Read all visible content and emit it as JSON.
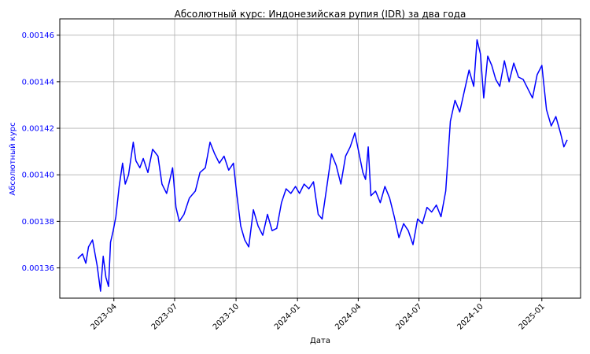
{
  "chart_data": {
    "type": "line",
    "title": "Абсолютный курс: Индонезийская рупия (IDR) за два года",
    "xlabel": "Дата",
    "ylabel": "Абсолютный курс",
    "y_ticks": [
      0.00136,
      0.00138,
      0.0014,
      0.00142,
      0.00144,
      0.00146
    ],
    "y_tick_labels": [
      "0.00136",
      "0.00138",
      "0.00140",
      "0.00142",
      "0.00144",
      "0.00146"
    ],
    "ylim": [
      0.001347,
      0.001467
    ],
    "x_ticks": [
      "2023-04",
      "2023-07",
      "2023-10",
      "2024-01",
      "2024-04",
      "2024-07",
      "2024-10",
      "2025-01"
    ],
    "xlim": [
      "2023-01-10",
      "2025-02-28"
    ],
    "grid": true,
    "colors": {
      "line": "#0000ff",
      "ylabel": "#0000ff",
      "grid": "#b0b0b0"
    },
    "series": [
      {
        "x": [
          "2023-02-06",
          "2023-02-13",
          "2023-02-18",
          "2023-02-22",
          "2023-02-28",
          "2023-03-07",
          "2023-03-12",
          "2023-03-16",
          "2023-03-20",
          "2023-03-24",
          "2023-03-27",
          "2023-03-31",
          "2023-04-04",
          "2023-04-09",
          "2023-04-14",
          "2023-04-18",
          "2023-04-23",
          "2023-04-30",
          "2023-05-04",
          "2023-05-10",
          "2023-05-15",
          "2023-05-22",
          "2023-05-29",
          "2023-06-06",
          "2023-06-12",
          "2023-06-19",
          "2023-06-24",
          "2023-06-28",
          "2023-07-03",
          "2023-07-08",
          "2023-07-15",
          "2023-07-23",
          "2023-08-01",
          "2023-08-08",
          "2023-08-16",
          "2023-08-23",
          "2023-08-30",
          "2023-09-06",
          "2023-09-13",
          "2023-09-20",
          "2023-09-27",
          "2023-10-02",
          "2023-10-08",
          "2023-10-14",
          "2023-10-20",
          "2023-10-27",
          "2023-11-03",
          "2023-11-10",
          "2023-11-17",
          "2023-11-24",
          "2023-12-01",
          "2023-12-08",
          "2023-12-15",
          "2023-12-22",
          "2023-12-29",
          "2024-01-04",
          "2024-01-11",
          "2024-01-18",
          "2024-01-25",
          "2024-02-01",
          "2024-02-07",
          "2024-02-14",
          "2024-02-21",
          "2024-02-28",
          "2024-03-06",
          "2024-03-13",
          "2024-03-20",
          "2024-03-27",
          "2024-04-03",
          "2024-04-08",
          "2024-04-12",
          "2024-04-16",
          "2024-04-20",
          "2024-04-27",
          "2024-05-04",
          "2024-05-11",
          "2024-05-18",
          "2024-05-25",
          "2024-06-01",
          "2024-06-08",
          "2024-06-15",
          "2024-06-22",
          "2024-06-29",
          "2024-07-06",
          "2024-07-13",
          "2024-07-20",
          "2024-07-27",
          "2024-08-03",
          "2024-08-10",
          "2024-08-17",
          "2024-08-24",
          "2024-08-31",
          "2024-09-07",
          "2024-09-14",
          "2024-09-21",
          "2024-09-26",
          "2024-10-01",
          "2024-10-06",
          "2024-10-12",
          "2024-10-18",
          "2024-10-24",
          "2024-10-30",
          "2024-11-06",
          "2024-11-13",
          "2024-11-20",
          "2024-11-27",
          "2024-12-04",
          "2024-12-11",
          "2024-12-18",
          "2024-12-25",
          "2025-01-01",
          "2025-01-08",
          "2025-01-15",
          "2025-01-22",
          "2025-01-29",
          "2025-02-03",
          "2025-02-08"
        ],
        "values": [
          0.001364,
          0.001366,
          0.001362,
          0.001369,
          0.001372,
          0.001361,
          0.00135,
          0.001365,
          0.001356,
          0.001352,
          0.001371,
          0.001376,
          0.001382,
          0.001395,
          0.001405,
          0.001396,
          0.0014,
          0.001414,
          0.001406,
          0.001403,
          0.001407,
          0.001401,
          0.001411,
          0.001408,
          0.001396,
          0.001392,
          0.001398,
          0.001403,
          0.001386,
          0.00138,
          0.001383,
          0.00139,
          0.001393,
          0.001401,
          0.001403,
          0.001414,
          0.001409,
          0.001405,
          0.001408,
          0.001402,
          0.001405,
          0.001392,
          0.001378,
          0.001372,
          0.001369,
          0.001385,
          0.001378,
          0.001374,
          0.001383,
          0.001376,
          0.001377,
          0.001388,
          0.001394,
          0.001392,
          0.001395,
          0.001392,
          0.001396,
          0.001394,
          0.001397,
          0.001383,
          0.001381,
          0.001395,
          0.001409,
          0.001404,
          0.001396,
          0.001408,
          0.001412,
          0.001418,
          0.001408,
          0.001401,
          0.001398,
          0.001412,
          0.001391,
          0.001393,
          0.001388,
          0.001395,
          0.00139,
          0.001382,
          0.001373,
          0.001379,
          0.001376,
          0.00137,
          0.001381,
          0.001379,
          0.001386,
          0.001384,
          0.001387,
          0.001382,
          0.001393,
          0.001423,
          0.001432,
          0.001427,
          0.001436,
          0.001445,
          0.001438,
          0.001458,
          0.001452,
          0.001433,
          0.001451,
          0.001447,
          0.001441,
          0.001438,
          0.001449,
          0.00144,
          0.001448,
          0.001442,
          0.001441,
          0.001437,
          0.001433,
          0.001443,
          0.001447,
          0.001428,
          0.001421,
          0.001425,
          0.001418,
          0.001412,
          0.001415
        ]
      }
    ]
  }
}
